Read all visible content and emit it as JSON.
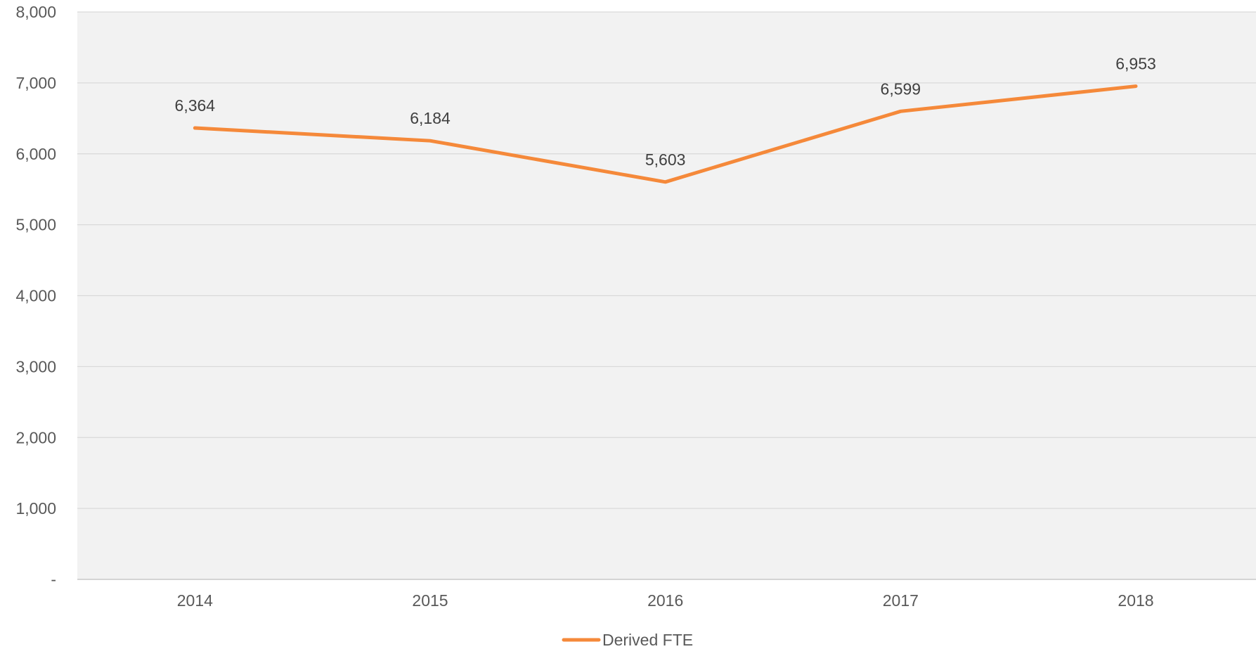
{
  "chart_data": {
    "type": "line",
    "title": "",
    "xlabel": "",
    "ylabel": "",
    "categories": [
      "2014",
      "2015",
      "2016",
      "2017",
      "2018"
    ],
    "series": [
      {
        "name": "Derived FTE",
        "color": "#f5893a",
        "values": [
          6364,
          6184,
          5603,
          6599,
          6953
        ],
        "labels": [
          "6,364",
          "6,184",
          "5,603",
          "6,599",
          "6,953"
        ]
      }
    ],
    "ylim": [
      0,
      8000
    ],
    "yticks": [
      0,
      1000,
      2000,
      3000,
      4000,
      5000,
      6000,
      7000,
      8000
    ],
    "ytick_labels": [
      "-",
      "1,000",
      "2,000",
      "3,000",
      "4,000",
      "5,000",
      "6,000",
      "7,000",
      "8,000"
    ],
    "grid": true,
    "plot_background": "#f2f2f2",
    "gridline_color": "#d9d9d9",
    "legend_position": "bottom"
  }
}
